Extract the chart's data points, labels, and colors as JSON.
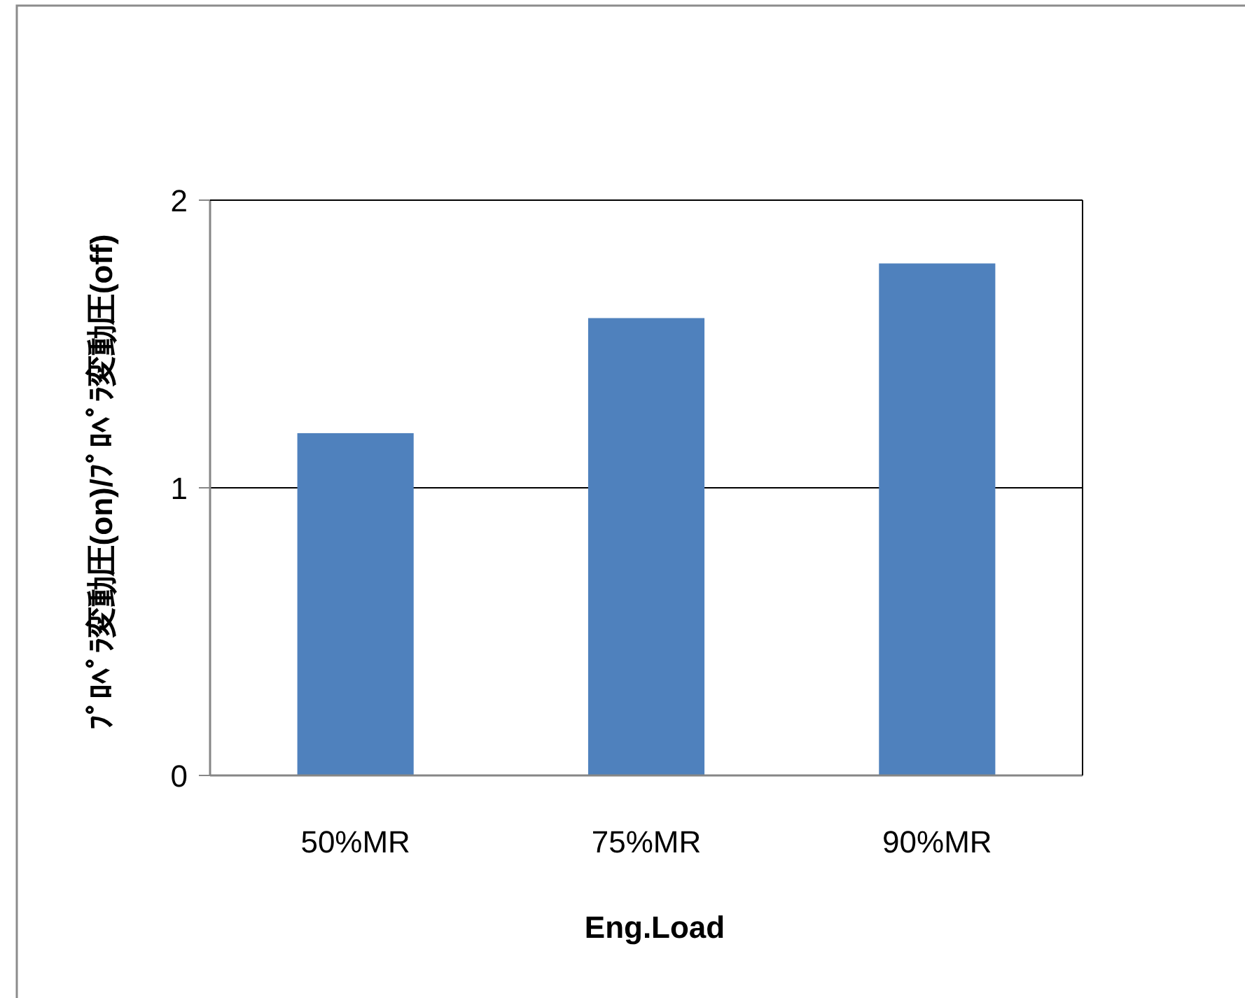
{
  "chart_data": {
    "type": "bar",
    "xlabel": "Eng.Load",
    "ylabel": "ﾌﾟﾛﾍﾟﾗ変動圧(on)/ﾌﾟﾛﾍﾟﾗ変動圧(off)",
    "categories": [
      "50%MR",
      "75%MR",
      "90%MR"
    ],
    "values": [
      1.19,
      1.59,
      1.78
    ],
    "color": "#4f81bd",
    "ylim": [
      0,
      2
    ],
    "yticks": [
      0,
      1,
      2
    ],
    "grid": "y"
  }
}
